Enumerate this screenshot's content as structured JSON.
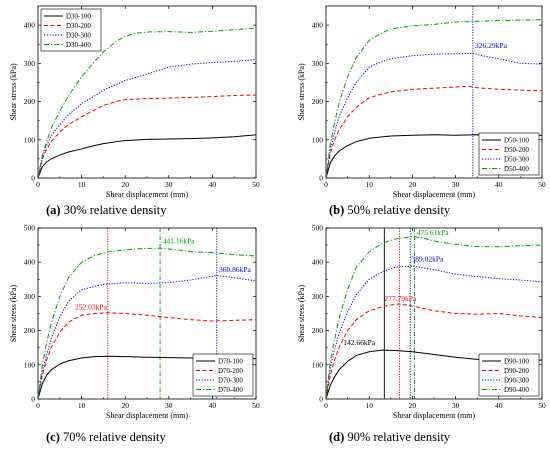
{
  "colors": {
    "D-100": "#000000",
    "D-200": "#ff0000",
    "D-300": "#0000ff",
    "D-400": "#00a000"
  },
  "chart_data": [
    {
      "type": "line",
      "caption_letter": "(a)",
      "caption_text": " 30% relative density",
      "xlabel": "Shear displacement (mm)",
      "ylabel": "Shear stress (kPa)",
      "xlim": [
        0,
        50
      ],
      "ylim": [
        0,
        450
      ],
      "xticks": [
        0,
        10,
        20,
        30,
        40,
        50
      ],
      "yticks": [
        0,
        100,
        200,
        300,
        400
      ],
      "legend_position": "top-left",
      "series": [
        {
          "name": "D30-100",
          "style": "solid",
          "colorKey": "D-100",
          "x": [
            0,
            1,
            2,
            3,
            5,
            7,
            10,
            13,
            15,
            18,
            20,
            25,
            30,
            35,
            40,
            45,
            50
          ],
          "y": [
            0,
            30,
            42,
            50,
            60,
            68,
            76,
            85,
            90,
            95,
            98,
            101,
            102,
            103,
            105,
            108,
            113
          ]
        },
        {
          "name": "D30-200",
          "style": "dashed",
          "colorKey": "D-200",
          "x": [
            0,
            1,
            2,
            3,
            5,
            7,
            10,
            13,
            15,
            18,
            20,
            25,
            30,
            35,
            40,
            45,
            50
          ],
          "y": [
            0,
            50,
            75,
            95,
            120,
            140,
            160,
            178,
            190,
            200,
            205,
            208,
            209,
            211,
            213,
            216,
            217
          ]
        },
        {
          "name": "D30-300",
          "style": "dotted",
          "colorKey": "D-300",
          "x": [
            0,
            1,
            2,
            3,
            5,
            7,
            10,
            13,
            15,
            18,
            20,
            25,
            30,
            35,
            40,
            45,
            50
          ],
          "y": [
            0,
            55,
            85,
            110,
            140,
            165,
            195,
            215,
            230,
            245,
            255,
            272,
            290,
            298,
            302,
            305,
            310
          ]
        },
        {
          "name": "D30-400",
          "style": "dashdot",
          "colorKey": "D-400",
          "x": [
            0,
            1,
            2,
            3,
            5,
            7,
            10,
            13,
            15,
            18,
            20,
            22,
            25,
            30,
            35,
            40,
            45,
            50
          ],
          "y": [
            0,
            60,
            95,
            130,
            175,
            215,
            265,
            305,
            330,
            358,
            370,
            378,
            382,
            383,
            381,
            384,
            388,
            392
          ]
        }
      ],
      "vlines": [],
      "annotations": []
    },
    {
      "type": "line",
      "caption_letter": "(b)",
      "caption_text": " 50% relative density",
      "xlabel": "Shear displacement (mm)",
      "ylabel": "Shear stress (kPa)",
      "xlim": [
        0,
        50
      ],
      "ylim": [
        0,
        450
      ],
      "xticks": [
        0,
        10,
        20,
        30,
        40,
        50
      ],
      "yticks": [
        0,
        100,
        200,
        300,
        400
      ],
      "legend_position": "bottom-right",
      "series": [
        {
          "name": "D50-100",
          "style": "solid",
          "colorKey": "D-100",
          "x": [
            0,
            1,
            2,
            3,
            5,
            7,
            10,
            15,
            20,
            25,
            30,
            35,
            40,
            45,
            50
          ],
          "y": [
            0,
            40,
            58,
            70,
            85,
            95,
            104,
            110,
            112,
            113,
            112,
            113,
            112,
            113,
            112
          ]
        },
        {
          "name": "D50-200",
          "style": "dashed",
          "colorKey": "D-200",
          "x": [
            0,
            1,
            2,
            3,
            5,
            7,
            10,
            13,
            15,
            20,
            25,
            30,
            33,
            35,
            40,
            45,
            50
          ],
          "y": [
            0,
            65,
            100,
            125,
            160,
            185,
            210,
            220,
            225,
            232,
            235,
            238,
            240,
            236,
            232,
            230,
            228
          ]
        },
        {
          "name": "D50-300",
          "style": "dotted",
          "colorKey": "D-300",
          "x": [
            0,
            1,
            2,
            3,
            5,
            7,
            10,
            13,
            15,
            20,
            25,
            30,
            34,
            37,
            40,
            45,
            50
          ],
          "y": [
            0,
            75,
            120,
            160,
            210,
            250,
            290,
            305,
            312,
            320,
            324,
            325,
            326,
            318,
            312,
            300,
            298
          ]
        },
        {
          "name": "D50-400",
          "style": "dashdot",
          "colorKey": "D-400",
          "x": [
            0,
            1,
            2,
            3,
            5,
            7,
            10,
            13,
            15,
            20,
            25,
            30,
            35,
            40,
            45,
            50
          ],
          "y": [
            0,
            90,
            145,
            195,
            265,
            315,
            360,
            380,
            390,
            398,
            402,
            408,
            410,
            412,
            413,
            414
          ]
        }
      ],
      "vlines": [
        {
          "x": 34,
          "colorKey": "D-300"
        }
      ],
      "annotations": [
        {
          "text": "326.29kPa",
          "x": 34.5,
          "y": 340,
          "colorKey": "D-300"
        }
      ]
    },
    {
      "type": "line",
      "caption_letter": "(c)",
      "caption_text": " 70% relative density",
      "xlabel": "Shear displacement (mm)",
      "ylabel": "Shear stress (kPa)",
      "xlim": [
        0,
        50
      ],
      "ylim": [
        0,
        500
      ],
      "xticks": [
        0,
        10,
        20,
        30,
        40,
        50
      ],
      "yticks": [
        0,
        100,
        200,
        300,
        400,
        500
      ],
      "legend_position": "bottom-right",
      "series": [
        {
          "name": "D70-100",
          "style": "solid",
          "colorKey": "D-100",
          "x": [
            0,
            1,
            2,
            3,
            5,
            7,
            10,
            13,
            16,
            20,
            25,
            30,
            35,
            40,
            45,
            50
          ],
          "y": [
            0,
            45,
            70,
            85,
            102,
            112,
            120,
            124,
            125,
            124,
            122,
            121,
            120,
            119,
            118,
            118
          ]
        },
        {
          "name": "D70-200",
          "style": "dashed",
          "colorKey": "D-200",
          "x": [
            0,
            1,
            2,
            3,
            5,
            7,
            10,
            13,
            16,
            20,
            25,
            30,
            35,
            40,
            45,
            50
          ],
          "y": [
            0,
            70,
            115,
            150,
            195,
            225,
            245,
            250,
            252,
            250,
            245,
            238,
            232,
            228,
            230,
            232
          ]
        },
        {
          "name": "D70-300",
          "style": "dotted",
          "colorKey": "D-300",
          "x": [
            0,
            1,
            2,
            3,
            5,
            7,
            10,
            15,
            20,
            25,
            30,
            35,
            38,
            41,
            45,
            50
          ],
          "y": [
            0,
            80,
            130,
            175,
            240,
            285,
            320,
            335,
            340,
            338,
            340,
            348,
            355,
            361,
            355,
            345
          ]
        },
        {
          "name": "D70-400",
          "style": "dashdot",
          "colorKey": "D-400",
          "x": [
            0,
            1,
            2,
            3,
            5,
            7,
            10,
            13,
            16,
            20,
            24,
            28,
            32,
            36,
            40,
            45,
            50
          ],
          "y": [
            0,
            100,
            165,
            220,
            300,
            355,
            400,
            420,
            430,
            436,
            440,
            441,
            436,
            430,
            428,
            422,
            418
          ]
        }
      ],
      "vlines": [
        {
          "x": 16,
          "colorKey": "D-200"
        },
        {
          "x": 28,
          "colorKey": "D-400"
        },
        {
          "x": 41,
          "colorKey": "D-300"
        }
      ],
      "annotations": [
        {
          "text": "252.03kPa",
          "x": 8.5,
          "y": 262,
          "colorKey": "D-200"
        },
        {
          "text": "441.16kPa",
          "x": 28.6,
          "y": 455,
          "colorKey": "D-400"
        },
        {
          "text": "360.86kPa",
          "x": 41.5,
          "y": 372,
          "colorKey": "D-300"
        }
      ]
    },
    {
      "type": "line",
      "caption_letter": "(d)",
      "caption_text": " 90% relative density",
      "xlabel": "Shear displacement (mm)",
      "ylabel": "Shear stress (kPa)",
      "xlim": [
        0,
        50
      ],
      "ylim": [
        0,
        500
      ],
      "xticks": [
        0,
        10,
        20,
        30,
        40,
        50
      ],
      "yticks": [
        0,
        100,
        200,
        300,
        400,
        500
      ],
      "legend_position": "bottom-right",
      "series": [
        {
          "name": "D90-100",
          "style": "solid",
          "colorKey": "D-100",
          "x": [
            0,
            1,
            2,
            3,
            5,
            7,
            10,
            13,
            16,
            20,
            25,
            30,
            35,
            40,
            45,
            50
          ],
          "y": [
            0,
            40,
            65,
            85,
            110,
            127,
            138,
            143,
            142,
            138,
            130,
            122,
            116,
            113,
            112,
            114
          ]
        },
        {
          "name": "D90-200",
          "style": "dashed",
          "colorKey": "D-200",
          "x": [
            0,
            1,
            2,
            3,
            5,
            7,
            10,
            13,
            15,
            17,
            20,
            25,
            30,
            35,
            40,
            45,
            50
          ],
          "y": [
            0,
            70,
            115,
            150,
            200,
            232,
            258,
            270,
            275,
            278,
            272,
            258,
            250,
            248,
            250,
            243,
            238
          ]
        },
        {
          "name": "D90-300",
          "style": "dotted",
          "colorKey": "D-300",
          "x": [
            0,
            1,
            2,
            3,
            5,
            7,
            10,
            13,
            16,
            20,
            25,
            30,
            35,
            40,
            45,
            50
          ],
          "y": [
            0,
            90,
            145,
            190,
            255,
            305,
            350,
            372,
            385,
            389,
            378,
            365,
            358,
            352,
            348,
            342
          ]
        },
        {
          "name": "D90-400",
          "style": "dashdot",
          "colorKey": "D-400",
          "x": [
            0,
            1,
            2,
            3,
            5,
            7,
            10,
            13,
            16,
            20,
            22,
            25,
            30,
            35,
            40,
            45,
            50
          ],
          "y": [
            0,
            110,
            175,
            235,
            320,
            385,
            430,
            455,
            468,
            475,
            472,
            462,
            452,
            446,
            445,
            448,
            450
          ]
        }
      ],
      "vlines": [
        {
          "x": 13.5,
          "colorKey": "D-100"
        },
        {
          "x": 17,
          "colorKey": "D-200"
        },
        {
          "x": 19.5,
          "colorKey": "D-300"
        },
        {
          "x": 20.5,
          "colorKey": "D-400"
        }
      ],
      "annotations": [
        {
          "text": "142.66kPa",
          "x": 4,
          "y": 158,
          "colorKey": "D-100"
        },
        {
          "text": "277.79kPa",
          "x": 13.5,
          "y": 286,
          "colorKey": "D-200"
        },
        {
          "text": "389.02kPa",
          "x": 19.8,
          "y": 402,
          "colorKey": "D-300"
        },
        {
          "text": "475.61kPa",
          "x": 21,
          "y": 480,
          "colorKey": "D-400"
        }
      ]
    }
  ]
}
